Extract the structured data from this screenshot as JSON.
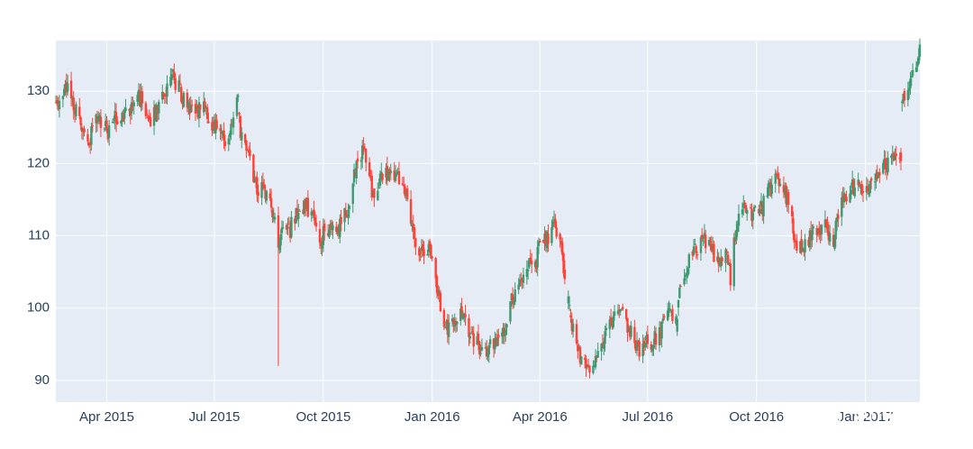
{
  "chart_data": {
    "type": "candlestick",
    "title": "",
    "xlabel": "",
    "ylabel": "",
    "grid": true,
    "xlim": [
      "2015-02-17",
      "2017-02-16"
    ],
    "ylim": [
      87,
      137
    ],
    "colors": {
      "background": "#e5ecf6",
      "grid": "#ffffff",
      "increasing": "#3d9970",
      "decreasing": "#ff4136",
      "tick_text": "#2a3f5f"
    },
    "x_ticks": [
      {
        "date": "2015-04-01",
        "label": "Apr 2015"
      },
      {
        "date": "2015-07-01",
        "label": "Jul 2015"
      },
      {
        "date": "2015-10-01",
        "label": "Oct 2015"
      },
      {
        "date": "2016-01-01",
        "label": "Jan 2016"
      },
      {
        "date": "2016-04-01",
        "label": "Apr 2016"
      },
      {
        "date": "2016-07-01",
        "label": "Jul 2016"
      },
      {
        "date": "2016-10-01",
        "label": "Oct 2016"
      },
      {
        "date": "2017-01-01",
        "label": "Jan 2017"
      }
    ],
    "y_ticks": [
      90,
      100,
      110,
      120,
      130
    ],
    "anchors": [
      [
        "2015-02-17",
        127.8
      ],
      [
        "2015-02-23",
        129.5
      ],
      [
        "2015-02-27",
        131.0
      ],
      [
        "2015-03-05",
        127.5
      ],
      [
        "2015-03-11",
        124.5
      ],
      [
        "2015-03-17",
        123.0
      ],
      [
        "2015-03-23",
        125.5
      ],
      [
        "2015-03-27",
        126.0
      ],
      [
        "2015-04-02",
        124.5
      ],
      [
        "2015-04-08",
        126.0
      ],
      [
        "2015-04-15",
        126.5
      ],
      [
        "2015-04-21",
        127.0
      ],
      [
        "2015-04-27",
        130.0
      ],
      [
        "2015-05-01",
        128.0
      ],
      [
        "2015-05-07",
        125.5
      ],
      [
        "2015-05-14",
        128.0
      ],
      [
        "2015-05-20",
        130.0
      ],
      [
        "2015-05-27",
        132.0
      ],
      [
        "2015-06-02",
        130.0
      ],
      [
        "2015-06-08",
        128.5
      ],
      [
        "2015-06-15",
        127.0
      ],
      [
        "2015-06-22",
        127.5
      ],
      [
        "2015-06-29",
        125.5
      ],
      [
        "2015-07-06",
        124.5
      ],
      [
        "2015-07-10",
        122.0
      ],
      [
        "2015-07-16",
        125.0
      ],
      [
        "2015-07-21",
        130.5
      ],
      [
        "2015-07-23",
        124.5
      ],
      [
        "2015-07-29",
        122.0
      ],
      [
        "2015-08-04",
        117.0
      ],
      [
        "2015-08-10",
        116.5
      ],
      [
        "2015-08-14",
        115.5
      ],
      [
        "2015-08-20",
        113.5
      ],
      [
        "2015-08-24",
        108.0
      ],
      [
        "2015-08-28",
        110.5
      ],
      [
        "2015-09-03",
        111.0
      ],
      [
        "2015-09-10",
        113.5
      ],
      [
        "2015-09-16",
        114.5
      ],
      [
        "2015-09-22",
        112.0
      ],
      [
        "2015-09-28",
        109.5
      ],
      [
        "2015-10-02",
        110.5
      ],
      [
        "2015-10-09",
        110.5
      ],
      [
        "2015-10-15",
        111.5
      ],
      [
        "2015-10-21",
        114.0
      ],
      [
        "2015-10-27",
        118.0
      ],
      [
        "2015-11-03",
        122.0
      ],
      [
        "2015-11-06",
        120.5
      ],
      [
        "2015-11-12",
        115.5
      ],
      [
        "2015-11-18",
        118.0
      ],
      [
        "2015-11-24",
        118.5
      ],
      [
        "2015-12-01",
        118.0
      ],
      [
        "2015-12-07",
        117.0
      ],
      [
        "2015-12-10",
        115.0
      ],
      [
        "2015-12-16",
        110.0
      ],
      [
        "2015-12-22",
        107.5
      ],
      [
        "2015-12-30",
        108.0
      ],
      [
        "2016-01-05",
        103.0
      ],
      [
        "2016-01-11",
        98.5
      ],
      [
        "2016-01-15",
        97.0
      ],
      [
        "2016-01-21",
        98.0
      ],
      [
        "2016-01-27",
        99.5
      ],
      [
        "2016-02-02",
        96.0
      ],
      [
        "2016-02-08",
        95.0
      ],
      [
        "2016-02-12",
        94.0
      ],
      [
        "2016-02-19",
        94.5
      ],
      [
        "2016-02-25",
        95.0
      ],
      [
        "2016-03-03",
        97.5
      ],
      [
        "2016-03-09",
        101.5
      ],
      [
        "2016-03-15",
        104.0
      ],
      [
        "2016-03-21",
        106.0
      ],
      [
        "2016-03-28",
        105.5
      ],
      [
        "2016-04-01",
        109.0
      ],
      [
        "2016-04-07",
        109.5
      ],
      [
        "2016-04-13",
        111.0
      ],
      [
        "2016-04-19",
        108.0
      ],
      [
        "2016-04-22",
        105.0
      ],
      [
        "2016-04-28",
        97.5
      ],
      [
        "2016-05-04",
        93.5
      ],
      [
        "2016-05-10",
        93.0
      ],
      [
        "2016-05-16",
        91.5
      ],
      [
        "2016-05-20",
        94.0
      ],
      [
        "2016-05-26",
        96.0
      ],
      [
        "2016-06-02",
        98.0
      ],
      [
        "2016-06-08",
        99.5
      ],
      [
        "2016-06-14",
        97.5
      ],
      [
        "2016-06-20",
        96.0
      ],
      [
        "2016-06-24",
        93.5
      ],
      [
        "2016-06-30",
        95.5
      ],
      [
        "2016-07-06",
        95.5
      ],
      [
        "2016-07-12",
        97.0
      ],
      [
        "2016-07-18",
        99.0
      ],
      [
        "2016-07-22",
        98.5
      ],
      [
        "2016-07-26",
        97.5
      ],
      [
        "2016-07-28",
        104.0
      ],
      [
        "2016-08-03",
        105.5
      ],
      [
        "2016-08-09",
        107.5
      ],
      [
        "2016-08-15",
        109.0
      ],
      [
        "2016-08-19",
        109.5
      ],
      [
        "2016-08-25",
        107.5
      ],
      [
        "2016-08-31",
        106.5
      ],
      [
        "2016-09-06",
        107.5
      ],
      [
        "2016-09-09",
        104.0
      ],
      [
        "2016-09-14",
        112.0
      ],
      [
        "2016-09-20",
        113.5
      ],
      [
        "2016-09-26",
        113.0
      ],
      [
        "2016-09-30",
        113.0
      ],
      [
        "2016-10-06",
        114.0
      ],
      [
        "2016-10-12",
        116.5
      ],
      [
        "2016-10-18",
        117.5
      ],
      [
        "2016-10-24",
        117.0
      ],
      [
        "2016-10-28",
        114.0
      ],
      [
        "2016-11-03",
        109.5
      ],
      [
        "2016-11-09",
        107.5
      ],
      [
        "2016-11-15",
        110.0
      ],
      [
        "2016-11-21",
        111.0
      ],
      [
        "2016-11-29",
        111.0
      ],
      [
        "2016-12-05",
        109.5
      ],
      [
        "2016-12-09",
        113.5
      ],
      [
        "2016-12-15",
        115.5
      ],
      [
        "2016-12-21",
        116.5
      ],
      [
        "2016-12-27",
        116.5
      ],
      [
        "2017-01-03",
        116.5
      ],
      [
        "2017-01-09",
        118.5
      ],
      [
        "2017-01-13",
        119.5
      ],
      [
        "2017-01-19",
        120.0
      ],
      [
        "2017-01-25",
        121.5
      ],
      [
        "2017-01-31",
        121.5
      ],
      [
        "2017-02-01",
        128.5
      ],
      [
        "2017-02-06",
        130.5
      ],
      [
        "2017-02-10",
        132.5
      ],
      [
        "2017-02-16",
        135.5
      ]
    ],
    "gaps": [
      [
        "2015-07-22",
        "2015-07-22"
      ],
      [
        "2016-04-22",
        "2016-04-27"
      ],
      [
        "2016-07-26",
        "2016-07-27"
      ],
      [
        "2016-09-30",
        "2016-10-03"
      ],
      [
        "2017-01-31",
        "2017-02-01"
      ]
    ],
    "spikes": [
      {
        "date": "2015-08-24",
        "low": 92.0
      }
    ]
  },
  "watermark": {
    "text": "Python小屋"
  }
}
